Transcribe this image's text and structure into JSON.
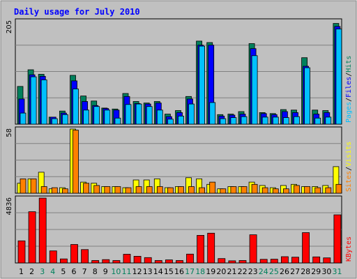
{
  "title": "Daily usage for July 2010",
  "colors": {
    "background": "#ffffff",
    "frame": "#c0c0c0",
    "title_text": "#0000ff",
    "hits": "#00805c",
    "files": "#0000ff",
    "pages": "#00c0ff",
    "visits": "#ffff00",
    "sites": "#ff8000",
    "kbytes": "#ff0000",
    "weekend_label": "#00805c",
    "weekday_label": "#000000"
  },
  "chart_data": [
    {
      "type": "bar",
      "panel": "hits-files-pages",
      "ymax_label": "205",
      "ylim": [
        0,
        205
      ],
      "legend": [
        "Pages",
        "/",
        "Files",
        "/",
        "Hits"
      ],
      "categories": [
        "1",
        "2",
        "3",
        "4",
        "5",
        "6",
        "7",
        "8",
        "9",
        "10",
        "11",
        "12",
        "13",
        "14",
        "15",
        "16",
        "17",
        "18",
        "19",
        "20",
        "21",
        "22",
        "23",
        "24",
        "25",
        "26",
        "27",
        "28",
        "29",
        "30",
        "31"
      ],
      "weekend": [
        3,
        4,
        10,
        11,
        17,
        18,
        24,
        25,
        31
      ],
      "series": [
        {
          "name": "Hits",
          "values": [
            75,
            108,
            99,
            14,
            26,
            97,
            56,
            46,
            32,
            30,
            61,
            45,
            42,
            45,
            20,
            27,
            55,
            165,
            162,
            19,
            20,
            25,
            160,
            23,
            21,
            29,
            28,
            132,
            28,
            27,
            200
          ]
        },
        {
          "name": "Files",
          "values": [
            50,
            98,
            95,
            14,
            22,
            86,
            45,
            37,
            31,
            28,
            55,
            41,
            40,
            42,
            15,
            23,
            50,
            157,
            157,
            16,
            18,
            20,
            150,
            21,
            19,
            25,
            23,
            115,
            20,
            23,
            194
          ]
        },
        {
          "name": "Pages",
          "values": [
            22,
            94,
            88,
            11,
            19,
            70,
            28,
            35,
            28,
            12,
            39,
            40,
            35,
            28,
            10,
            16,
            40,
            155,
            43,
            11,
            13,
            15,
            136,
            14,
            14,
            13,
            15,
            112,
            12,
            14,
            189
          ]
        }
      ]
    },
    {
      "type": "bar",
      "panel": "sites-visits",
      "ymax_label": "58",
      "ylim": [
        0,
        58
      ],
      "legend": [
        "Sites",
        "/",
        "Visits"
      ],
      "categories": [
        "1",
        "2",
        "3",
        "4",
        "5",
        "6",
        "7",
        "8",
        "9",
        "10",
        "11",
        "12",
        "13",
        "14",
        "15",
        "16",
        "17",
        "18",
        "19",
        "20",
        "21",
        "22",
        "23",
        "24",
        "25",
        "26",
        "27",
        "28",
        "29",
        "30",
        "31"
      ],
      "series": [
        {
          "name": "Visits",
          "values": [
            9,
            13,
            19,
            4,
            5,
            58,
            10,
            9,
            6,
            6,
            5,
            12,
            12,
            13,
            5,
            6,
            14,
            13,
            8,
            4,
            6,
            6,
            10,
            7,
            5,
            7,
            8,
            6,
            6,
            7,
            24
          ]
        },
        {
          "name": "Sites",
          "values": [
            13,
            13,
            6,
            5,
            4,
            57,
            9,
            7,
            6,
            6,
            5,
            6,
            6,
            6,
            5,
            6,
            6,
            5,
            10,
            4,
            6,
            6,
            8,
            5,
            4,
            4,
            7,
            6,
            5,
            5,
            8
          ]
        }
      ]
    },
    {
      "type": "bar",
      "panel": "kbytes",
      "ymax_label": "4836",
      "ylim": [
        0,
        4836
      ],
      "legend": [
        "KBytes"
      ],
      "categories": [
        "1",
        "2",
        "3",
        "4",
        "5",
        "6",
        "7",
        "8",
        "9",
        "10",
        "11",
        "12",
        "13",
        "14",
        "15",
        "16",
        "17",
        "18",
        "19",
        "20",
        "21",
        "22",
        "23",
        "24",
        "25",
        "26",
        "27",
        "28",
        "29",
        "30",
        "31"
      ],
      "series": [
        {
          "name": "KBytes",
          "values": [
            1650,
            3820,
            4836,
            900,
            300,
            1380,
            1000,
            180,
            250,
            180,
            650,
            500,
            400,
            180,
            230,
            180,
            660,
            2060,
            2220,
            330,
            160,
            180,
            2100,
            270,
            280,
            470,
            430,
            2260,
            450,
            380,
            3590
          ]
        }
      ]
    }
  ]
}
